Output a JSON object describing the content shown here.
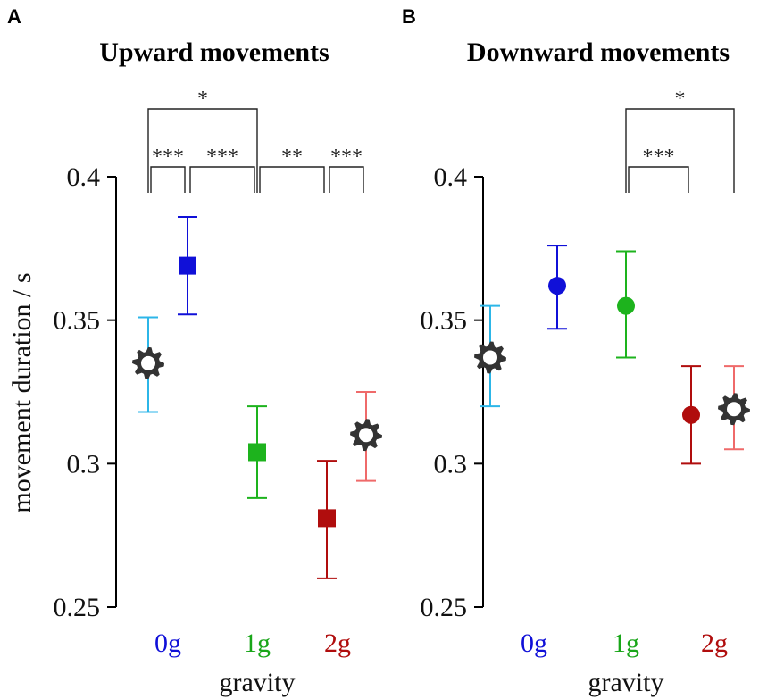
{
  "chart_data": [
    {
      "panel": "A",
      "type": "scatter",
      "title": "Upward movements",
      "xlabel": "gravity",
      "ylabel": "movement duration / s",
      "ylim": [
        0.25,
        0.4
      ],
      "yticks": [
        "0.4",
        "0.35",
        "0.3",
        "0.25"
      ],
      "categories": [
        "0g",
        "1g",
        "2g"
      ],
      "category_colors": [
        "#1010d8",
        "#19a619",
        "#b00d0d"
      ],
      "points": [
        {
          "group": "0g",
          "marker": "gear",
          "color": "#2cb6e8",
          "value": 0.335,
          "err_low": 0.318,
          "err_high": 0.351
        },
        {
          "group": "0g",
          "marker": "square",
          "color": "#1010d8",
          "value": 0.369,
          "err_low": 0.352,
          "err_high": 0.386
        },
        {
          "group": "1g",
          "marker": "square",
          "color": "#1db31d",
          "value": 0.304,
          "err_low": 0.288,
          "err_high": 0.32
        },
        {
          "group": "2g",
          "marker": "square",
          "color": "#b00d0d",
          "value": 0.281,
          "err_low": 0.26,
          "err_high": 0.301
        },
        {
          "group": "2g",
          "marker": "gear",
          "color": "#ef6a6a",
          "value": 0.31,
          "err_low": 0.294,
          "err_high": 0.325
        }
      ],
      "significance": [
        {
          "from": 0,
          "to": 2,
          "label": "*"
        },
        {
          "from": 0,
          "to": 1,
          "label": "***"
        },
        {
          "from": 1,
          "to": 2,
          "label": "***"
        },
        {
          "from": 2,
          "to": 3,
          "label": "**"
        },
        {
          "from": 3,
          "to": 4,
          "label": "***"
        }
      ]
    },
    {
      "panel": "B",
      "type": "scatter",
      "title": "Downward movements",
      "xlabel": "gravity",
      "ylabel": "",
      "ylim": [
        0.25,
        0.4
      ],
      "yticks": [
        "0.4",
        "0.35",
        "0.3",
        "0.25"
      ],
      "categories": [
        "0g",
        "1g",
        "2g"
      ],
      "category_colors": [
        "#1010d8",
        "#19a619",
        "#b00d0d"
      ],
      "points": [
        {
          "group": "0g",
          "marker": "gear",
          "color": "#2cb6e8",
          "value": 0.337,
          "err_low": 0.32,
          "err_high": 0.355
        },
        {
          "group": "0g",
          "marker": "circle",
          "color": "#1010d8",
          "value": 0.362,
          "err_low": 0.347,
          "err_high": 0.376
        },
        {
          "group": "1g",
          "marker": "circle",
          "color": "#1db31d",
          "value": 0.355,
          "err_low": 0.337,
          "err_high": 0.374
        },
        {
          "group": "2g",
          "marker": "circle",
          "color": "#b00d0d",
          "value": 0.317,
          "err_low": 0.3,
          "err_high": 0.334
        },
        {
          "group": "2g",
          "marker": "gear",
          "color": "#ef6a6a",
          "value": 0.319,
          "err_low": 0.305,
          "err_high": 0.334
        }
      ],
      "significance": [
        {
          "from": 2,
          "to": 4,
          "label": "*"
        },
        {
          "from": 2,
          "to": 3,
          "label": "***"
        }
      ]
    }
  ]
}
